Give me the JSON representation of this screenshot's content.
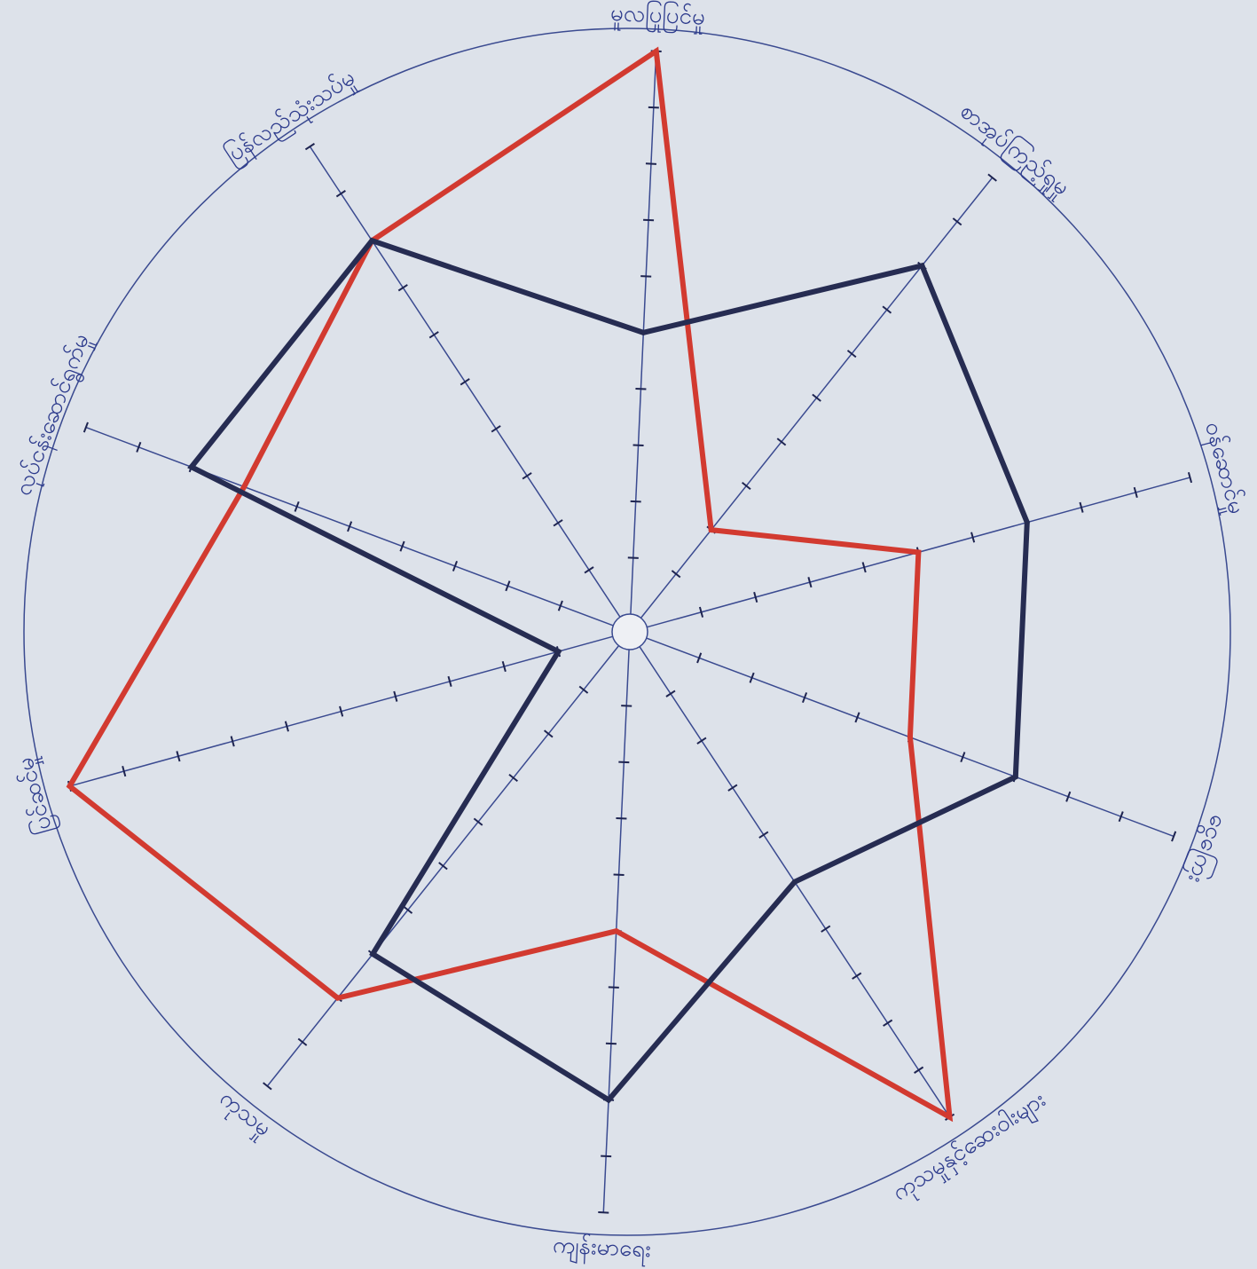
{
  "chart_data": {
    "type": "radar",
    "categories": [
      "မူလပြုပြင်မှု",
      "စာအုပ်ကြည့်ရှုမှု",
      "ဝန်ဆောင်မှု",
      "ငွေကြေး",
      "ကုသမှုနှင့်ဆေးဝါးများ",
      "ကျန်းမာရေး",
      "ကုသမှု",
      "ပြင်ဆင်မှု",
      "လုပ်ငန်းဆောင်ရွက်မှု",
      "ပြန်လည်သုံးသပ်မှု"
    ],
    "series": [
      {
        "color": "#d23a30",
        "values": [
          10,
          2,
          5,
          5,
          10,
          5,
          8,
          10,
          7,
          8
        ]
      },
      {
        "color": "#262c52",
        "values": [
          5,
          8,
          7,
          7,
          5,
          8,
          7,
          1,
          8,
          8
        ]
      }
    ],
    "rlim": [
      0,
      10
    ],
    "rticks": [
      1,
      2,
      3,
      4,
      5,
      6,
      7,
      8,
      9,
      10
    ]
  }
}
